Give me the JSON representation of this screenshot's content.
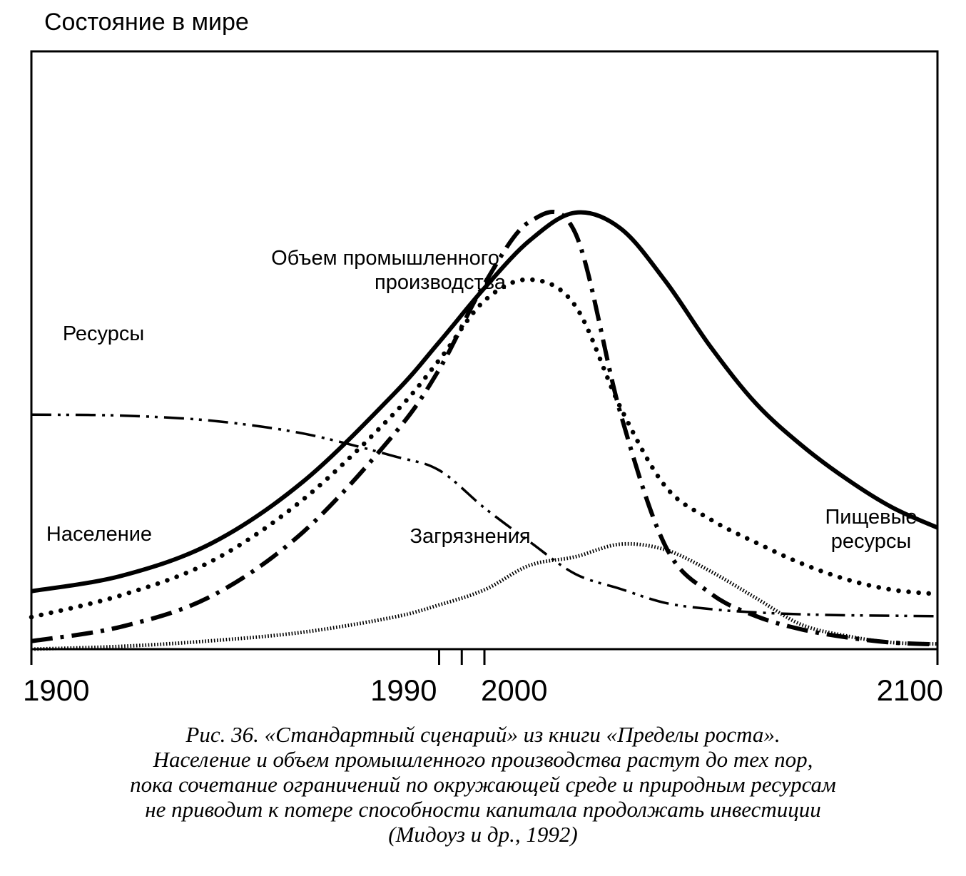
{
  "chart_data": {
    "type": "line",
    "ylabel": "Состояние в мире",
    "xlim": [
      1900,
      2100
    ],
    "x_ticks": [
      1900,
      1990,
      2000,
      2100
    ],
    "x_minor_ticks": [
      1995
    ],
    "series": [
      {
        "name": "Население",
        "style": "solid",
        "points": [
          [
            1900,
            0.123
          ],
          [
            1920,
            0.156
          ],
          [
            1940,
            0.226
          ],
          [
            1960,
            0.356
          ],
          [
            1980,
            0.542
          ],
          [
            1990,
            0.652
          ],
          [
            2000,
            0.767
          ],
          [
            2010,
            0.868
          ],
          [
            2020,
            0.927
          ],
          [
            2030,
            0.894
          ],
          [
            2040,
            0.781
          ],
          [
            2050,
            0.641
          ],
          [
            2060,
            0.521
          ],
          [
            2070,
            0.433
          ],
          [
            2080,
            0.361
          ],
          [
            2090,
            0.301
          ],
          [
            2100,
            0.258
          ]
        ]
      },
      {
        "name": "Пищевые ресурсы",
        "style": "dotted",
        "points": [
          [
            1900,
            0.068
          ],
          [
            1920,
            0.115
          ],
          [
            1940,
            0.188
          ],
          [
            1960,
            0.318
          ],
          [
            1980,
            0.5
          ],
          [
            1990,
            0.614
          ],
          [
            2000,
            0.74
          ],
          [
            2010,
            0.785
          ],
          [
            2020,
            0.73
          ],
          [
            2030,
            0.514
          ],
          [
            2040,
            0.345
          ],
          [
            2050,
            0.275
          ],
          [
            2060,
            0.226
          ],
          [
            2070,
            0.182
          ],
          [
            2080,
            0.148
          ],
          [
            2090,
            0.126
          ],
          [
            2100,
            0.117
          ]
        ]
      },
      {
        "name": "Объем промышленного производства",
        "style": "dash-dot-heavy",
        "points": [
          [
            1900,
            0.017
          ],
          [
            1920,
            0.048
          ],
          [
            1940,
            0.114
          ],
          [
            1960,
            0.249
          ],
          [
            1980,
            0.456
          ],
          [
            1990,
            0.594
          ],
          [
            2000,
            0.776
          ],
          [
            2010,
            0.908
          ],
          [
            2020,
            0.885
          ],
          [
            2030,
            0.502
          ],
          [
            2040,
            0.218
          ],
          [
            2050,
            0.118
          ],
          [
            2060,
            0.07
          ],
          [
            2070,
            0.042
          ],
          [
            2080,
            0.025
          ],
          [
            2090,
            0.014
          ],
          [
            2100,
            0.01
          ]
        ]
      },
      {
        "name": "Ресурсы",
        "style": "dash-dot-dot",
        "points": [
          [
            1900,
            0.498
          ],
          [
            1920,
            0.496
          ],
          [
            1940,
            0.485
          ],
          [
            1960,
            0.458
          ],
          [
            1980,
            0.41
          ],
          [
            1990,
            0.38
          ],
          [
            2000,
            0.3
          ],
          [
            2010,
            0.228
          ],
          [
            2020,
            0.16
          ],
          [
            2030,
            0.128
          ],
          [
            2040,
            0.098
          ],
          [
            2050,
            0.085
          ],
          [
            2060,
            0.078
          ],
          [
            2070,
            0.074
          ],
          [
            2080,
            0.072
          ],
          [
            2090,
            0.071
          ],
          [
            2100,
            0.07
          ]
        ]
      },
      {
        "name": "Загрязнения",
        "style": "fine-dotted",
        "points": [
          [
            1900,
            0.0
          ],
          [
            1920,
            0.006
          ],
          [
            1940,
            0.018
          ],
          [
            1960,
            0.036
          ],
          [
            1980,
            0.068
          ],
          [
            1990,
            0.094
          ],
          [
            2000,
            0.126
          ],
          [
            2010,
            0.178
          ],
          [
            2020,
            0.196
          ],
          [
            2030,
            0.223
          ],
          [
            2040,
            0.211
          ],
          [
            2050,
            0.165
          ],
          [
            2060,
            0.108
          ],
          [
            2070,
            0.052
          ],
          [
            2080,
            0.028
          ],
          [
            2090,
            0.014
          ],
          [
            2100,
            0.011
          ]
        ]
      }
    ],
    "annotations": {
      "label_industry_line1": "Объем промышленного",
      "label_industry_line2": "производства",
      "label_resources": "Ресурсы",
      "label_population": "Население",
      "label_pollution": "Загрязнения",
      "label_food_line1": "Пищевые",
      "label_food_line2": "ресурсы"
    },
    "grid": false,
    "legend": "none"
  },
  "caption": {
    "line1": "Рис. 36. «Стандартный сценарий» из книги «Пределы роста».",
    "line2": "Население и объем промышленного производства растут до тех пор,",
    "line3": "пока сочетание ограничений по окружающей среде и природным ресурсам",
    "line4": "не приводит к потере способности капитала продолжать инвестиции",
    "line5": "(Мидоуз и др., 1992)"
  }
}
